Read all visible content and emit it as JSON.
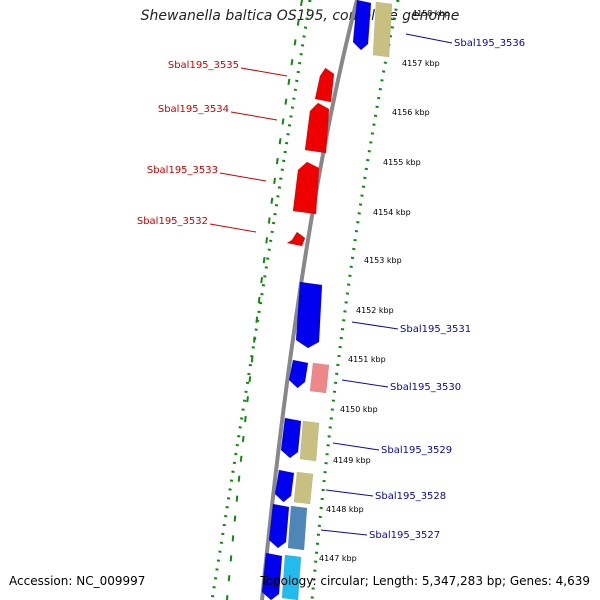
{
  "title": "Shewanella baltica OS195, complete genome",
  "footer": {
    "accession": "Accession: NC_009997",
    "summary": "Topology: circular; Length: 5,347,283 bp; Genes: 4,639"
  },
  "colors": {
    "backbone": "#888888",
    "gc_dots": "#118811",
    "forward_gene": "#0000ee",
    "reverse_gene": "#ee0000",
    "pink_gene": "#ee8888",
    "khaki_gene": "#c8c080",
    "steelblue_gene": "#4f86b8",
    "cyan_gene": "#22bbee",
    "label_forward": "#0a0aa0",
    "label_reverse": "#cc0000"
  },
  "scale_labels": [
    "4158 kbp",
    "4157 kbp",
    "4156 kbp",
    "4155 kbp",
    "4154 kbp",
    "4153 kbp",
    "4152 kbp",
    "4151 kbp",
    "4150 kbp",
    "4149 kbp",
    "4148 kbp",
    "4147 kbp"
  ],
  "genes_reverse": [
    {
      "label": "Sbal195_3535"
    },
    {
      "label": "Sbal195_3534"
    },
    {
      "label": "Sbal195_3533"
    },
    {
      "label": "Sbal195_3532"
    }
  ],
  "genes_forward": [
    {
      "label": "Sbal195_3536"
    },
    {
      "label": "Sbal195_3531"
    },
    {
      "label": "Sbal195_3530"
    },
    {
      "label": "Sbal195_3529"
    },
    {
      "label": "Sbal195_3528"
    },
    {
      "label": "Sbal195_3527"
    }
  ]
}
